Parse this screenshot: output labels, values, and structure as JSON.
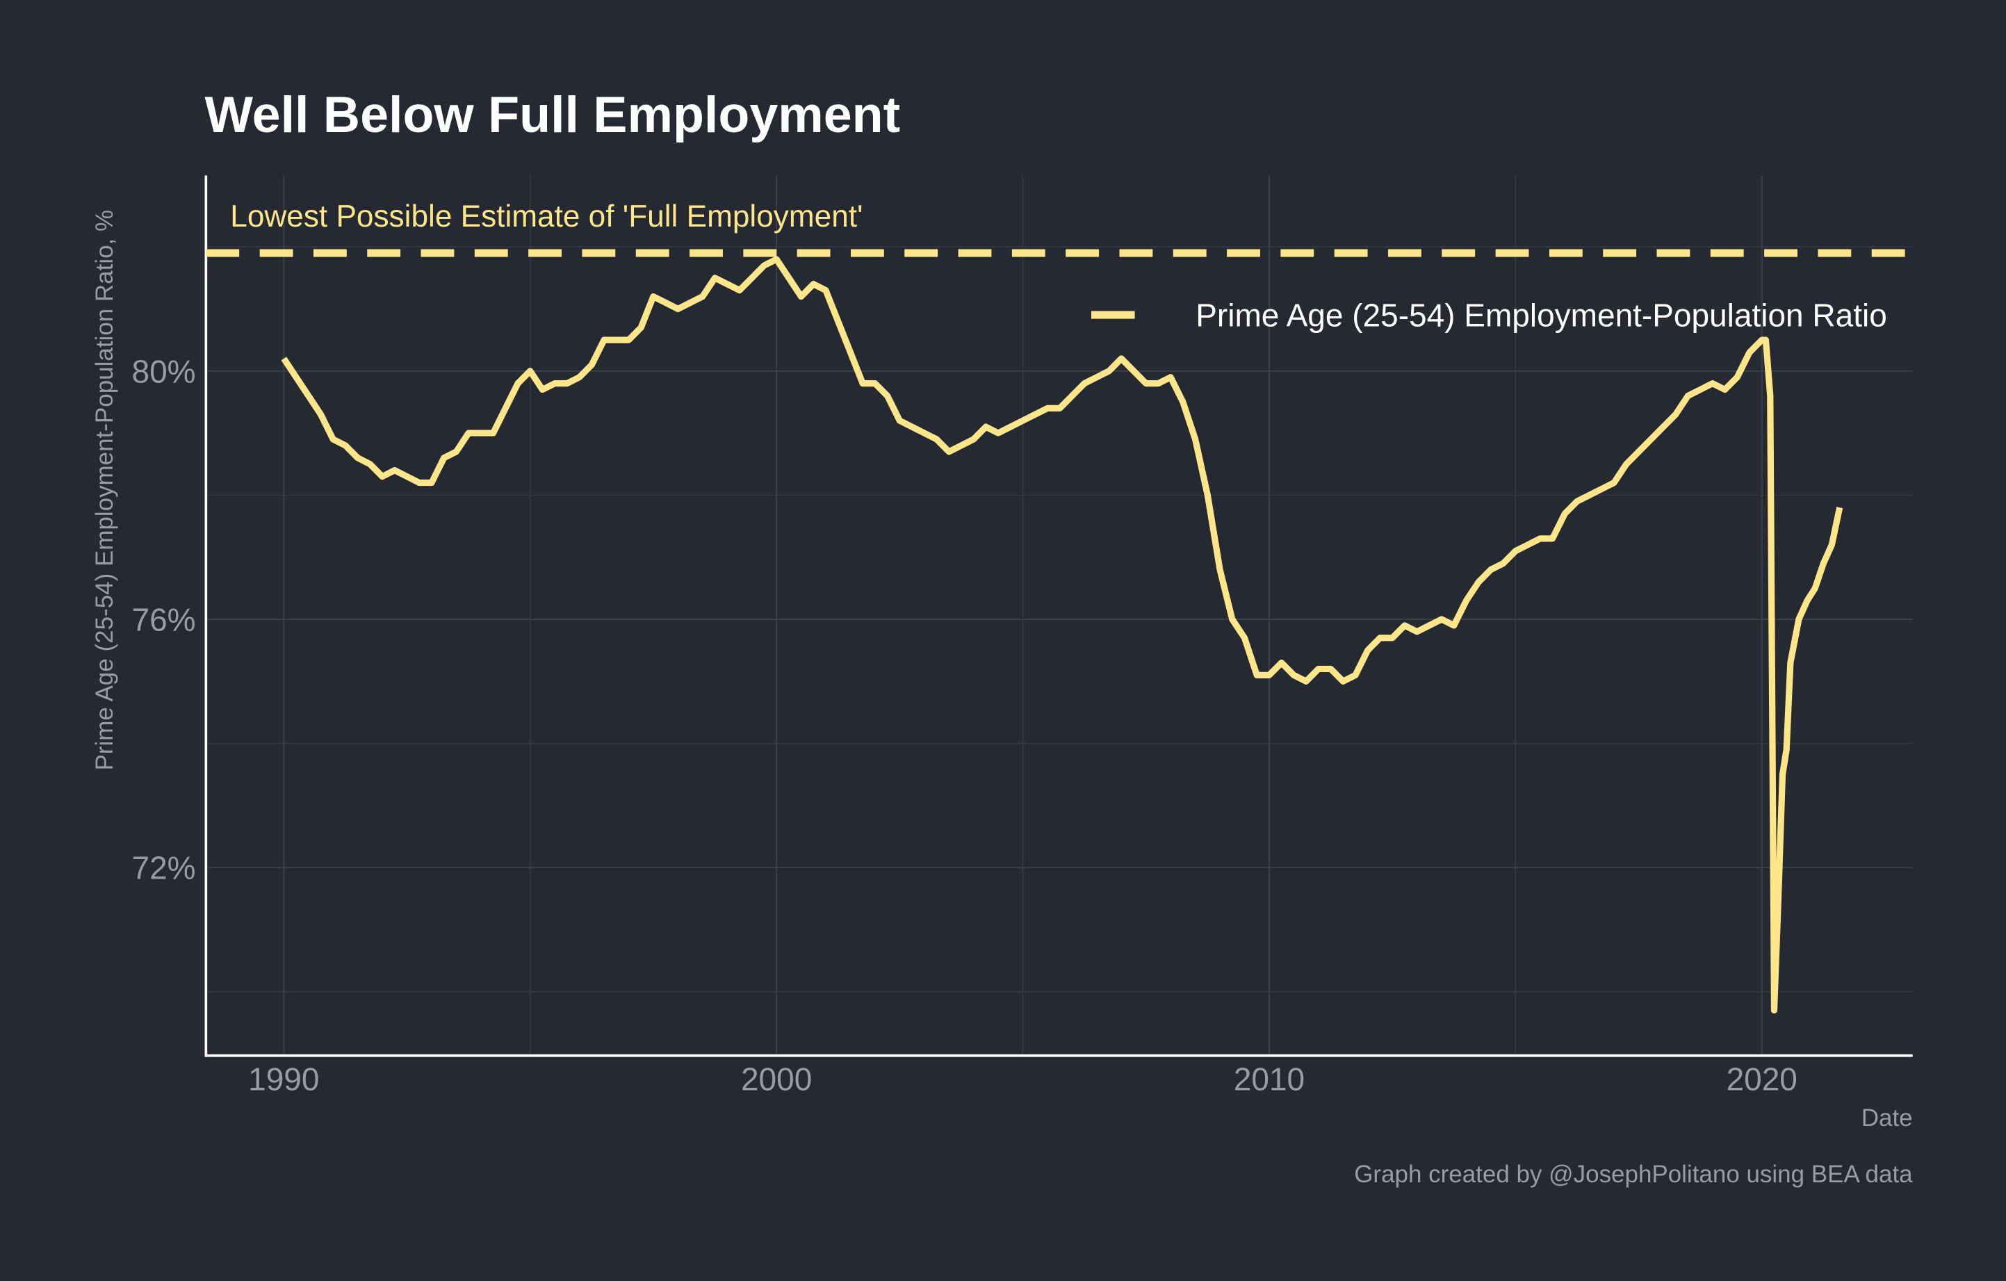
{
  "chart_data": {
    "type": "line",
    "title": "Well Below Full Employment",
    "y_label": "Prime Age (25-54) Employment-Population Ratio, %",
    "x_label": "Date",
    "caption": "Graph created by @JosephPolitano using BEA data",
    "annotation": "Lowest Possible Estimate of 'Full Employment'",
    "reference_line": 81.9,
    "legend": "top-right",
    "grid": true,
    "xlim": [
      1988.42,
      2023.06
    ],
    "xticks": [
      1990,
      2000,
      2010,
      2020
    ],
    "x_minor_ticks": [
      1995,
      2005,
      2015
    ],
    "ylim": [
      68.97,
      83.15
    ],
    "yticks": [
      {
        "value": 72,
        "label": "72%"
      },
      {
        "value": 76,
        "label": "76%"
      },
      {
        "value": 80,
        "label": "80%"
      }
    ],
    "y_minor_ticks": [
      70,
      74,
      78,
      82
    ],
    "x": [
      1990,
      1990.25,
      1990.5,
      1990.75,
      1991,
      1991.25,
      1991.5,
      1991.75,
      1992,
      1992.25,
      1992.5,
      1992.75,
      1993,
      1993.25,
      1993.5,
      1993.75,
      1994,
      1994.25,
      1994.5,
      1994.75,
      1995,
      1995.25,
      1995.5,
      1995.75,
      1996,
      1996.25,
      1996.5,
      1996.75,
      1997,
      1997.25,
      1997.5,
      1997.75,
      1998,
      1998.25,
      1998.5,
      1998.75,
      1999,
      1999.25,
      1999.5,
      1999.75,
      2000,
      2000.25,
      2000.5,
      2000.75,
      2001,
      2001.25,
      2001.5,
      2001.75,
      2002,
      2002.25,
      2002.5,
      2002.75,
      2003,
      2003.25,
      2003.5,
      2003.75,
      2004,
      2004.25,
      2004.5,
      2004.75,
      2005,
      2005.25,
      2005.5,
      2005.75,
      2006,
      2006.25,
      2006.5,
      2006.75,
      2007,
      2007.25,
      2007.5,
      2007.75,
      2008,
      2008.25,
      2008.5,
      2008.75,
      2009,
      2009.25,
      2009.5,
      2009.75,
      2010,
      2010.25,
      2010.5,
      2010.75,
      2011,
      2011.25,
      2011.5,
      2011.75,
      2012,
      2012.25,
      2012.5,
      2012.75,
      2013,
      2013.25,
      2013.5,
      2013.75,
      2014,
      2014.25,
      2014.5,
      2014.75,
      2015,
      2015.25,
      2015.5,
      2015.75,
      2016,
      2016.25,
      2016.5,
      2016.75,
      2017,
      2017.25,
      2017.5,
      2017.75,
      2018,
      2018.25,
      2018.5,
      2018.75,
      2019,
      2019.25,
      2019.5,
      2019.75,
      2020,
      2020.08,
      2020.17,
      2020.25,
      2020.33,
      2020.42,
      2020.5,
      2020.58,
      2020.75,
      2020.92,
      2021.08,
      2021.25,
      2021.42,
      2021.58
    ],
    "series": [
      {
        "name": "Prime Age (25-54) Employment-Population Ratio",
        "color": "#fde68a",
        "values": [
          80.2,
          79.9,
          79.6,
          79.3,
          78.9,
          78.8,
          78.6,
          78.5,
          78.3,
          78.4,
          78.3,
          78.2,
          78.2,
          78.6,
          78.7,
          79.0,
          79.0,
          79.0,
          79.4,
          79.8,
          80.0,
          79.7,
          79.8,
          79.8,
          79.9,
          80.1,
          80.5,
          80.5,
          80.5,
          80.7,
          81.2,
          81.1,
          81.0,
          81.1,
          81.2,
          81.5,
          81.4,
          81.3,
          81.5,
          81.7,
          81.8,
          81.5,
          81.2,
          81.4,
          81.3,
          80.8,
          80.3,
          79.8,
          79.8,
          79.6,
          79.2,
          79.1,
          79.0,
          78.9,
          78.7,
          78.8,
          78.9,
          79.1,
          79.0,
          79.1,
          79.2,
          79.3,
          79.4,
          79.4,
          79.6,
          79.8,
          79.9,
          80.0,
          80.2,
          80.0,
          79.8,
          79.8,
          79.9,
          79.5,
          78.9,
          78.0,
          76.8,
          76.0,
          75.7,
          75.1,
          75.1,
          75.3,
          75.1,
          75.0,
          75.2,
          75.2,
          75.0,
          75.1,
          75.5,
          75.7,
          75.7,
          75.9,
          75.8,
          75.9,
          76.0,
          75.9,
          76.3,
          76.6,
          76.8,
          76.9,
          77.1,
          77.2,
          77.3,
          77.3,
          77.7,
          77.9,
          78.0,
          78.1,
          78.2,
          78.5,
          78.7,
          78.9,
          79.1,
          79.3,
          79.6,
          79.7,
          79.8,
          79.7,
          79.9,
          80.3,
          80.5,
          80.5,
          79.6,
          69.7,
          71.4,
          73.5,
          73.9,
          75.3,
          76.0,
          76.3,
          76.5,
          76.9,
          77.2,
          77.8
        ]
      }
    ]
  }
}
